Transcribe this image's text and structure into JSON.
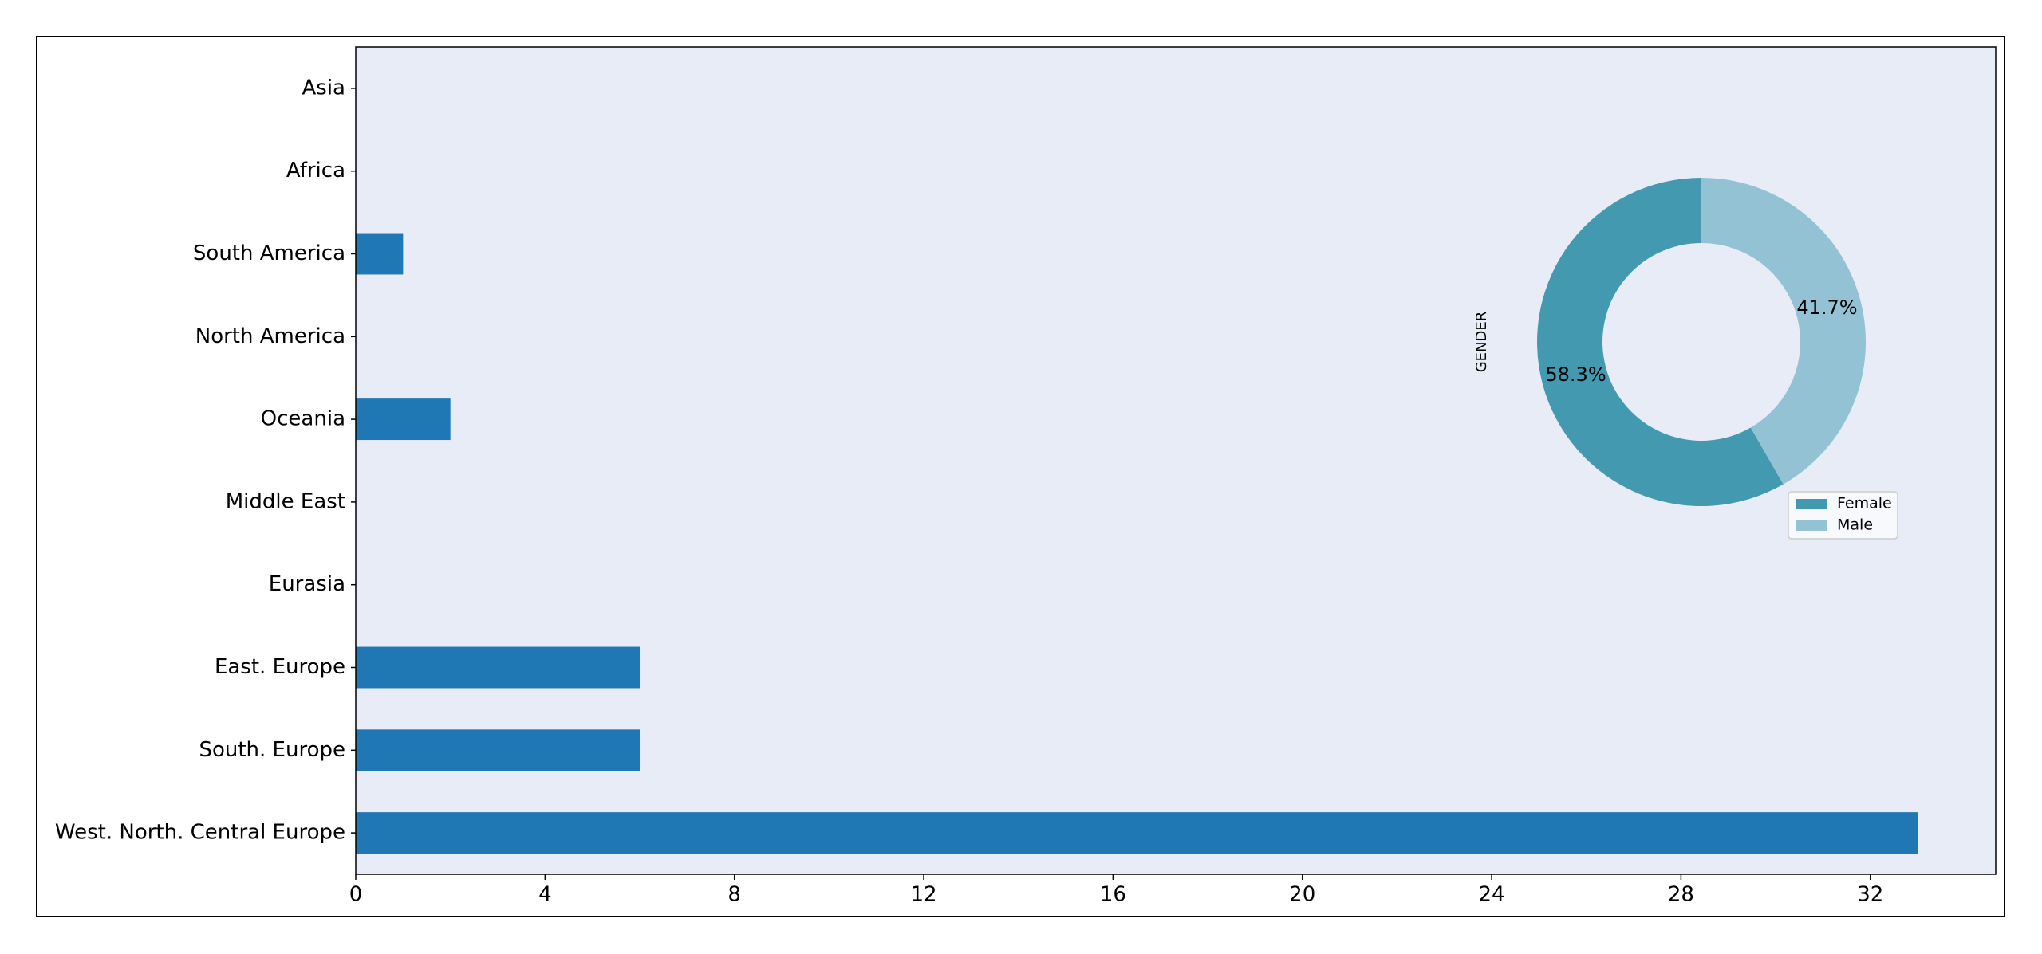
{
  "chart_data": [
    {
      "type": "barh",
      "categories": [
        "West. North. Central Europe",
        "South. Europe",
        "East. Europe",
        "Eurasia",
        "Middle East",
        "Oceania",
        "North America",
        "South America",
        "Africa",
        "Asia"
      ],
      "values": [
        33,
        6,
        6,
        0,
        0,
        2,
        0,
        1,
        0,
        0
      ],
      "color": "#1f77b4",
      "xlim": [
        0,
        34.65
      ],
      "xticks": [
        0,
        4,
        8,
        12,
        16,
        20,
        24,
        28,
        32
      ]
    },
    {
      "type": "pie",
      "ylabel": "GENDER",
      "categories": [
        "Female",
        "Male"
      ],
      "values": [
        58.3,
        41.7
      ],
      "value_labels": [
        "58.3%",
        "41.7%"
      ],
      "colors": [
        "#4399b0",
        "#92c2d4"
      ]
    }
  ]
}
